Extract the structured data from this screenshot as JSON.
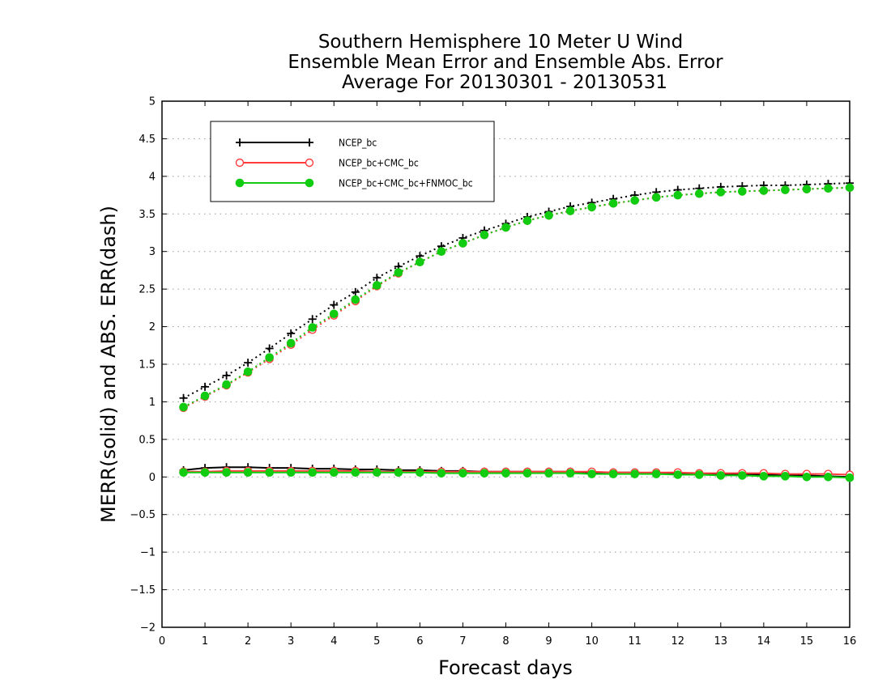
{
  "chart_data": {
    "type": "line",
    "title_lines": [
      "Southern Hemisphere 10 Meter U Wind",
      "Ensemble Mean Error and Ensemble Abs. Error",
      "Average For 20130301 - 20130531"
    ],
    "xlabel": "Forecast days",
    "ylabel": "MERR(solid) and ABS. ERR(dash)",
    "xlim": [
      0,
      16
    ],
    "ylim": [
      -2,
      5
    ],
    "xticks": [
      "0",
      "1",
      "2",
      "3",
      "4",
      "5",
      "6",
      "7",
      "8",
      "9",
      "10",
      "11",
      "12",
      "13",
      "14",
      "15",
      "16"
    ],
    "yticks": [
      "5",
      "4.5",
      "4",
      "3.5",
      "3",
      "2.5",
      "2",
      "1.5",
      "1",
      "0.5",
      "0",
      "−0.5",
      "−1",
      "−1.5",
      "−2"
    ],
    "grid": "horizontal dotted",
    "legend_position": "top-left",
    "x": [
      0.5,
      1,
      1.5,
      2,
      2.5,
      3,
      3.5,
      4,
      4.5,
      5,
      5.5,
      6,
      6.5,
      7,
      7.5,
      8,
      8.5,
      9,
      9.5,
      10,
      10.5,
      11,
      11.5,
      12,
      12.5,
      13,
      13.5,
      14,
      14.5,
      15,
      15.5,
      16
    ],
    "series": [
      {
        "name": "NCEP_bc",
        "color": "#000000",
        "marker": "plus",
        "abs_error": [
          1.05,
          1.2,
          1.35,
          1.52,
          1.71,
          1.91,
          2.1,
          2.29,
          2.46,
          2.65,
          2.8,
          2.94,
          3.07,
          3.18,
          3.28,
          3.37,
          3.46,
          3.53,
          3.6,
          3.65,
          3.7,
          3.75,
          3.79,
          3.82,
          3.84,
          3.86,
          3.87,
          3.88,
          3.88,
          3.89,
          3.9,
          3.91
        ],
        "mean_error": [
          0.09,
          0.12,
          0.13,
          0.13,
          0.12,
          0.12,
          0.11,
          0.11,
          0.1,
          0.1,
          0.09,
          0.09,
          0.08,
          0.08,
          0.07,
          0.07,
          0.07,
          0.07,
          0.07,
          0.06,
          0.06,
          0.06,
          0.05,
          0.05,
          0.04,
          0.04,
          0.03,
          0.03,
          0.02,
          0.02,
          0.01,
          0.0
        ]
      },
      {
        "name": "NCEP_bc+CMC_bc",
        "color": "#ff3b3b",
        "marker": "open-circle",
        "abs_error": [
          0.92,
          1.07,
          1.22,
          1.39,
          1.57,
          1.76,
          1.96,
          2.15,
          2.34,
          2.54,
          2.71,
          2.86,
          3.0,
          3.11,
          3.22,
          3.32,
          3.41,
          3.48,
          3.54,
          3.59,
          3.64,
          3.68,
          3.72,
          3.75,
          3.77,
          3.79,
          3.8,
          3.81,
          3.82,
          3.83,
          3.84,
          3.85
        ],
        "mean_error": [
          0.07,
          0.07,
          0.08,
          0.08,
          0.08,
          0.08,
          0.08,
          0.08,
          0.08,
          0.07,
          0.07,
          0.07,
          0.07,
          0.07,
          0.07,
          0.07,
          0.07,
          0.07,
          0.07,
          0.07,
          0.06,
          0.06,
          0.06,
          0.06,
          0.05,
          0.05,
          0.05,
          0.05,
          0.04,
          0.04,
          0.04,
          0.03
        ]
      },
      {
        "name": "NCEP_bc+CMC_bc+FNMOC_bc",
        "color": "#11cc11",
        "marker": "filled-circle",
        "abs_error": [
          0.93,
          1.08,
          1.23,
          1.4,
          1.59,
          1.78,
          1.99,
          2.17,
          2.36,
          2.55,
          2.72,
          2.86,
          3.0,
          3.11,
          3.22,
          3.32,
          3.41,
          3.48,
          3.54,
          3.59,
          3.64,
          3.68,
          3.72,
          3.75,
          3.77,
          3.79,
          3.8,
          3.81,
          3.82,
          3.83,
          3.84,
          3.85
        ],
        "mean_error": [
          0.06,
          0.06,
          0.06,
          0.06,
          0.06,
          0.06,
          0.06,
          0.06,
          0.06,
          0.06,
          0.06,
          0.06,
          0.05,
          0.05,
          0.05,
          0.05,
          0.05,
          0.05,
          0.05,
          0.04,
          0.04,
          0.04,
          0.04,
          0.03,
          0.03,
          0.02,
          0.02,
          0.01,
          0.01,
          0.0,
          0.0,
          -0.01
        ]
      }
    ]
  }
}
